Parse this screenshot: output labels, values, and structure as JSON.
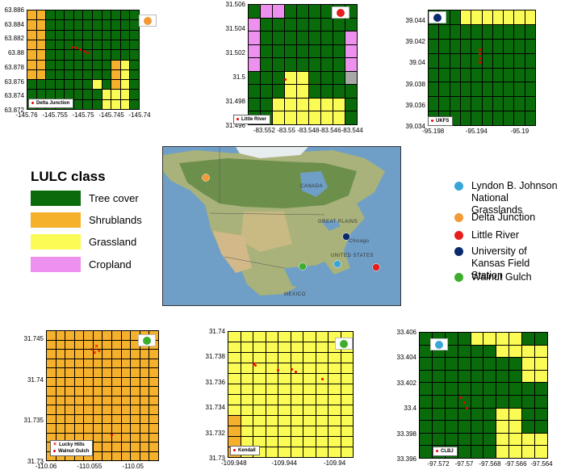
{
  "colors": {
    "tree_cover": "#0a6b0a",
    "shrublands": "#f6b12c",
    "grassland": "#fbfb55",
    "cropland": "#ee90ee",
    "other": "#a8a8a8"
  },
  "lulc_legend": {
    "title": "LULC class",
    "items": [
      {
        "label": "Tree cover",
        "color": "#0a6b0a"
      },
      {
        "label": "Shrublands",
        "color": "#f6b12c"
      },
      {
        "label": "Grassland",
        "color": "#fbfb55"
      },
      {
        "label": "Cropland",
        "color": "#ee90ee"
      }
    ]
  },
  "site_legend": {
    "items": [
      {
        "label": "Lyndon B. Johnson National Grasslands",
        "color": "#39a6d8"
      },
      {
        "label": "Delta Junction",
        "color": "#f39a35"
      },
      {
        "label": "Little River",
        "color": "#e61e1e"
      },
      {
        "label": "University of Kansas Field Station",
        "color": "#0b2a6e"
      },
      {
        "label": "Walnut Gulch",
        "color": "#3cae2c"
      }
    ]
  },
  "overview_map": {
    "labels": [
      "CANADA",
      "UNITED STATES",
      "GREAT PLAINS",
      "Chicago",
      "MEXICO"
    ]
  },
  "panels": [
    {
      "id": "delta-junction",
      "site_color": "#f39a35",
      "yticks": [
        "63.886",
        "63.884",
        "63.882",
        "63.88",
        "63.878",
        "63.876",
        "63.874",
        "63.872"
      ],
      "xticks": [
        "-145.76",
        "-145.755",
        "-145.75",
        "-145.745",
        "-145.74"
      ],
      "legend": [
        {
          "marker": "dot",
          "label": "Delta Junction"
        }
      ],
      "grid": {
        "cols": 12,
        "rows": 10,
        "fill": "T",
        "rects": [
          {
            "c": 0,
            "r": 0,
            "w": 2,
            "h": 7,
            "v": "S"
          },
          {
            "c": 7,
            "r": 7,
            "w": 1,
            "h": 1,
            "v": "G"
          },
          {
            "c": 9,
            "r": 5,
            "w": 1,
            "h": 5,
            "v": "S"
          },
          {
            "c": 10,
            "r": 5,
            "w": 1,
            "h": 5,
            "v": "G"
          },
          {
            "c": 8,
            "r": 8,
            "w": 2,
            "h": 2,
            "v": "G"
          }
        ]
      },
      "points": [
        {
          "lon": -145.7518,
          "lat": 63.8808
        },
        {
          "lon": -145.7512,
          "lat": 63.8806
        },
        {
          "lon": -145.7505,
          "lat": 63.8804
        },
        {
          "lon": -145.7498,
          "lat": 63.8802
        },
        {
          "lon": -145.7492,
          "lat": 63.88
        }
      ]
    },
    {
      "id": "little-river",
      "site_color": "#e61e1e",
      "yticks": [
        "31.506",
        "31.504",
        "31.502",
        "31.5",
        "31.498",
        "31.496"
      ],
      "xticks": [
        "-83.552",
        "-83.55",
        "-83.548",
        "-83.546",
        "-83.544"
      ],
      "legend": [
        {
          "marker": "dot",
          "label": "Little River"
        }
      ],
      "grid": {
        "cols": 9,
        "rows": 9,
        "fill": "T",
        "rects": [
          {
            "c": 1,
            "r": 0,
            "w": 2,
            "h": 1,
            "v": "C"
          },
          {
            "c": 0,
            "r": 1,
            "w": 1,
            "h": 4,
            "v": "C"
          },
          {
            "c": 8,
            "r": 2,
            "w": 1,
            "h": 3,
            "v": "C"
          },
          {
            "c": 8,
            "r": 5,
            "w": 1,
            "h": 1,
            "v": "O"
          },
          {
            "c": 3,
            "r": 5,
            "w": 2,
            "h": 4,
            "v": "G"
          },
          {
            "c": 2,
            "r": 7,
            "w": 1,
            "h": 2,
            "v": "G"
          },
          {
            "c": 5,
            "r": 7,
            "w": 3,
            "h": 2,
            "v": "G"
          }
        ]
      },
      "points": [
        {
          "lon": -83.5501,
          "lat": 31.4998
        }
      ]
    },
    {
      "id": "ukfs",
      "site_color": "#0b2a6e",
      "yticks": [
        "39.044",
        "39.042",
        "39.04",
        "39.038",
        "39.036",
        "39.034"
      ],
      "xticks": [
        "-95.198",
        "-95.194",
        "-95.19"
      ],
      "legend": [
        {
          "marker": "dot",
          "label": "UKFS"
        }
      ],
      "grid": {
        "cols": 10,
        "rows": 8,
        "fill": "T",
        "rects": [
          {
            "c": 3,
            "r": 0,
            "w": 7,
            "h": 1,
            "v": "G"
          }
        ]
      },
      "points": [
        {
          "lon": -95.1937,
          "lat": 39.0412
        },
        {
          "lon": -95.1937,
          "lat": 39.0408
        },
        {
          "lon": -95.1937,
          "lat": 39.0404
        },
        {
          "lon": -95.1937,
          "lat": 39.04
        }
      ]
    },
    {
      "id": "walnut-gulch",
      "site_color": "#3cae2c",
      "yticks": [
        "31.745",
        "31.74",
        "31.735",
        "31.73"
      ],
      "xticks": [
        "-110.06",
        "-110.055",
        "-110.05"
      ],
      "legend": [
        {
          "marker": "x",
          "label": "Lucky Hills"
        },
        {
          "marker": "dot",
          "label": "Walnut Gulch"
        }
      ],
      "grid": {
        "cols": 12,
        "rows": 14,
        "fill": "S",
        "rects": []
      },
      "points": [
        {
          "lon": -110.0524,
          "lat": 31.7332,
          "m": "dot"
        },
        {
          "lon": -110.0542,
          "lat": 31.744,
          "m": "x"
        },
        {
          "lon": -110.0547,
          "lat": 31.7436,
          "m": "x"
        },
        {
          "lon": -110.0539,
          "lat": 31.7434,
          "m": "x"
        },
        {
          "lon": -110.0544,
          "lat": 31.7432,
          "m": "x"
        }
      ]
    },
    {
      "id": "kendall",
      "site_color": "#3cae2c",
      "yticks": [
        "31.74",
        "31.738",
        "31.736",
        "31.734",
        "31.732",
        "31.73"
      ],
      "xticks": [
        "-109.948",
        "-109.944",
        "-109.94"
      ],
      "legend": [
        {
          "marker": "dot",
          "label": "Kendall"
        }
      ],
      "grid": {
        "cols": 10,
        "rows": 12,
        "fill": "G",
        "rects": [
          {
            "c": 0,
            "r": 8,
            "w": 1,
            "h": 4,
            "v": "S"
          }
        ]
      },
      "points": [
        {
          "lon": -109.9464,
          "lat": 31.7374
        },
        {
          "lon": -109.9463,
          "lat": 31.7373
        },
        {
          "lon": -109.9445,
          "lat": 31.7369
        },
        {
          "lon": -109.9434,
          "lat": 31.737
        },
        {
          "lon": -109.9431,
          "lat": 31.7368
        },
        {
          "lon": -109.941,
          "lat": 31.7362
        }
      ]
    },
    {
      "id": "clbj",
      "site_color": "#39a6d8",
      "yticks": [
        "33.406",
        "33.404",
        "33.402",
        "33.4",
        "33.398",
        "33.396"
      ],
      "xticks": [
        "-97.572",
        "-97.57",
        "-97.568",
        "-97.566",
        "-97.564"
      ],
      "legend": [
        {
          "marker": "dot",
          "label": "CLBJ"
        }
      ],
      "grid": {
        "cols": 10,
        "rows": 10,
        "fill": "T",
        "rects": [
          {
            "c": 4,
            "r": 0,
            "w": 2,
            "h": 1,
            "v": "G"
          },
          {
            "c": 6,
            "r": 0,
            "w": 2,
            "h": 1,
            "v": "G"
          },
          {
            "c": 6,
            "r": 1,
            "w": 4,
            "h": 1,
            "v": "G"
          },
          {
            "c": 8,
            "r": 2,
            "w": 2,
            "h": 2,
            "v": "G"
          },
          {
            "c": 6,
            "r": 6,
            "w": 2,
            "h": 4,
            "v": "G"
          },
          {
            "c": 8,
            "r": 8,
            "w": 2,
            "h": 2,
            "v": "G"
          }
        ]
      },
      "points": [
        {
          "lon": -97.5702,
          "lat": 33.4008
        },
        {
          "lon": -97.57,
          "lat": 33.4004
        },
        {
          "lon": -97.5698,
          "lat": 33.4
        }
      ]
    }
  ]
}
